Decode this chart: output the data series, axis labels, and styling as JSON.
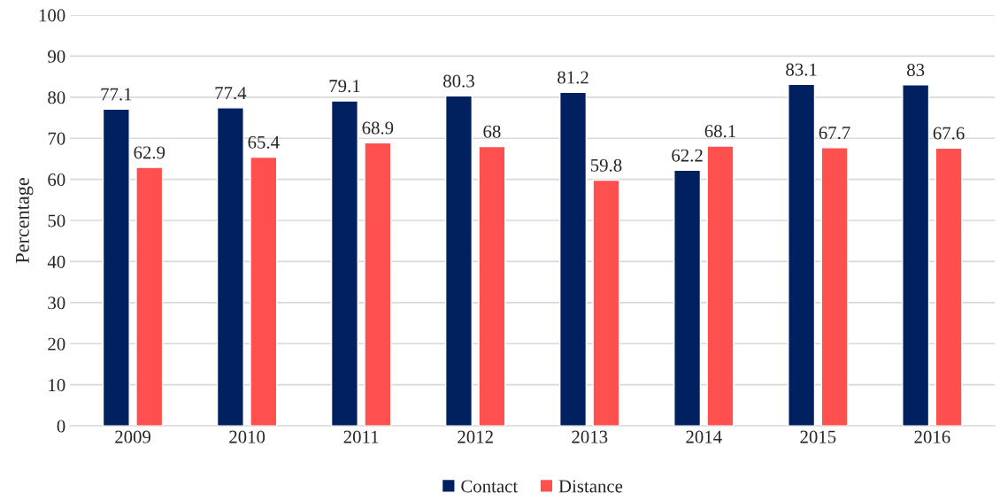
{
  "chart_data": {
    "type": "bar",
    "ylabel": "Percentage",
    "categories": [
      "2009",
      "2010",
      "2011",
      "2012",
      "2013",
      "2014",
      "2015",
      "2016"
    ],
    "series": [
      {
        "name": "Contact",
        "color": "#002060",
        "values": [
          77.1,
          77.4,
          79.1,
          80.3,
          81.2,
          62.2,
          83.1,
          83
        ]
      },
      {
        "name": "Distance",
        "color": "#ff5050",
        "values": [
          62.9,
          65.4,
          68.9,
          68,
          59.8,
          68.1,
          67.7,
          67.6
        ]
      }
    ],
    "ylim": [
      0,
      100
    ],
    "yticks": [
      0,
      10,
      20,
      30,
      40,
      50,
      60,
      70,
      80,
      90,
      100
    ],
    "grid": "y",
    "legend": "bottom",
    "data_labels": true
  }
}
